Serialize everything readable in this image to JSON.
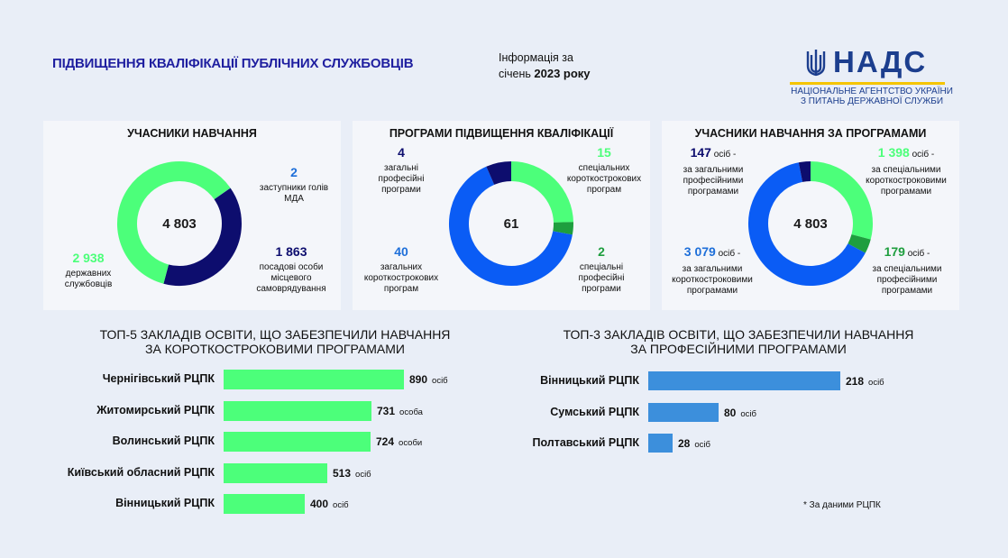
{
  "header": {
    "title": "ПІДВИЩЕННЯ КВАЛІФІКАЦІЇ ПУБЛІЧНИХ СЛУЖБОВЦІВ",
    "info_line1": "Інформація за",
    "info_prefix": "січень ",
    "info_bold": "2023 року",
    "logo_text": "НАДС",
    "logo_sub1": "НАЦІОНАЛЬНЕ АГЕНТСТВО УКРАЇНИ",
    "logo_sub2": "З ПИТАНЬ ДЕРЖАВНОЇ СЛУЖБИ"
  },
  "colors": {
    "green": "#4cff7a",
    "dark_navy": "#0d0d6e",
    "blue": "#0a5cf5",
    "dark_green": "#1e9e3e",
    "bar_green": "#4cff7a",
    "bar_blue": "#3c8fdc"
  },
  "panel1": {
    "title": "УЧАСНИКИ НАВЧАННЯ",
    "center": "4 803",
    "a_num": "2",
    "a_lbl1": "заступники голів",
    "a_lbl2": "МДА",
    "b_num": "1 863",
    "b_lbl1": "посадові особи",
    "b_lbl2": "місцевого",
    "b_lbl3": "самоврядування",
    "c_num": "2 938",
    "c_lbl1": "державних",
    "c_lbl2": "службовців"
  },
  "panel2": {
    "title": "ПРОГРАМИ ПІДВИЩЕННЯ КВАЛІФІКАЦІЇ",
    "center": "61",
    "a_num": "4",
    "a_lbl1": "загальні",
    "a_lbl2": "професійні",
    "a_lbl3": "програми",
    "b_num": "15",
    "b_lbl1": "спеціальних",
    "b_lbl2": "короткострокових",
    "b_lbl3": "програм",
    "c_num": "40",
    "c_lbl1": "загальних",
    "c_lbl2": "короткострокових",
    "c_lbl3": "програм",
    "d_num": "2",
    "d_lbl1": "спеціальні",
    "d_lbl2": "професійні",
    "d_lbl3": "програми"
  },
  "panel3": {
    "title": "УЧАСНИКИ НАВЧАННЯ ЗА ПРОГРАМАМИ",
    "center": "4 803",
    "a_num": "147",
    "a_unit": " осіб -",
    "a_lbl1": "за загальними",
    "a_lbl2": "професійними",
    "a_lbl3": "програмами",
    "b_num": "1 398",
    "b_unit": " осіб -",
    "b_lbl1": "за спеціальними",
    "b_lbl2": "короткостроковими",
    "b_lbl3": "програмами",
    "c_num": "3 079",
    "c_unit": " осіб -",
    "c_lbl1": "за загальними",
    "c_lbl2": "короткостроковими",
    "c_lbl3": "програмами",
    "d_num": "179",
    "d_unit": " осіб -",
    "d_lbl1": "за спеціальними",
    "d_lbl2": "професійними",
    "d_lbl3": "програмами"
  },
  "top5": {
    "title1": "ТОП-5 ЗАКЛАДІВ ОСВІТИ, ЩО ЗАБЕЗПЕЧИЛИ НАВЧАННЯ",
    "title2": "ЗА КОРОТКОСТРОКОВИМИ ПРОГРАМАМИ"
  },
  "top3": {
    "title1": "ТОП-3 ЗАКЛАДІВ ОСВІТИ, ЩО ЗАБЕЗПЕЧИЛИ НАВЧАННЯ",
    "title2": "ЗА ПРОФЕСІЙНИМИ ПРОГРАМАМИ"
  },
  "note": "* За даними РЦПК",
  "chart_data": [
    {
      "type": "pie",
      "subtype": "donut",
      "title": "УЧАСНИКИ НАВЧАННЯ",
      "center_label": "4 803",
      "categories": [
        "заступники голів МДА",
        "посадові особи місцевого самоврядування",
        "державних службовців"
      ],
      "values": [
        2,
        1863,
        2938
      ],
      "colors": [
        "#1e6fd9",
        "#0d0d6e",
        "#4cff7a"
      ]
    },
    {
      "type": "pie",
      "subtype": "donut",
      "title": "ПРОГРАМИ ПІДВИЩЕННЯ КВАЛІФІКАЦІЇ",
      "center_label": "61",
      "categories": [
        "спеціальних короткострокових програм",
        "спеціальні професійні програми",
        "загальних короткострокових програм",
        "загальні професійні програми"
      ],
      "values": [
        15,
        2,
        40,
        4
      ],
      "colors": [
        "#4cff7a",
        "#1e9e3e",
        "#0a5cf5",
        "#0d0d6e"
      ]
    },
    {
      "type": "pie",
      "subtype": "donut",
      "title": "УЧАСНИКИ НАВЧАННЯ ЗА ПРОГРАМАМИ",
      "center_label": "4 803",
      "categories": [
        "за спеціальними короткостроковими програмами",
        "за спеціальними професійними програмами",
        "за загальними короткостроковими програмами",
        "за загальними професійними програмами"
      ],
      "values": [
        1398,
        179,
        3079,
        147
      ],
      "colors": [
        "#4cff7a",
        "#1e9e3e",
        "#0a5cf5",
        "#0d0d6e"
      ]
    },
    {
      "type": "bar",
      "orientation": "horizontal",
      "title": "ТОП-5 ЗАКЛАДІВ ОСВІТИ, ЩО ЗАБЕЗПЕЧИЛИ НАВЧАННЯ ЗА КОРОТКОСТРОКОВИМИ ПРОГРАМАМИ",
      "categories": [
        "Чернігівський РЦПК",
        "Житомирський РЦПК",
        "Волинський РЦПК",
        "Київський обласний РЦПК",
        "Вінницький РЦПК"
      ],
      "values": [
        890,
        731,
        724,
        513,
        400
      ],
      "value_labels": [
        "890",
        "731",
        "724",
        "513",
        "400"
      ],
      "units": [
        "осіб",
        "особа",
        "особи",
        "осіб",
        "осіб"
      ],
      "color": "#4cff7a",
      "xlim": [
        0,
        890
      ]
    },
    {
      "type": "bar",
      "orientation": "horizontal",
      "title": "ТОП-3 ЗАКЛАДІВ ОСВІТИ, ЩО ЗАБЕЗПЕЧИЛИ НАВЧАННЯ ЗА ПРОФЕСІЙНИМИ ПРОГРАМАМИ",
      "categories": [
        "Вінницький РЦПК",
        "Сумський РЦПК",
        "Полтавський РЦПК"
      ],
      "values": [
        218,
        80,
        28
      ],
      "value_labels": [
        "218",
        "80",
        "28"
      ],
      "units": [
        "осіб",
        "осіб",
        "осіб"
      ],
      "color": "#3c8fdc",
      "xlim": [
        0,
        218
      ]
    }
  ]
}
